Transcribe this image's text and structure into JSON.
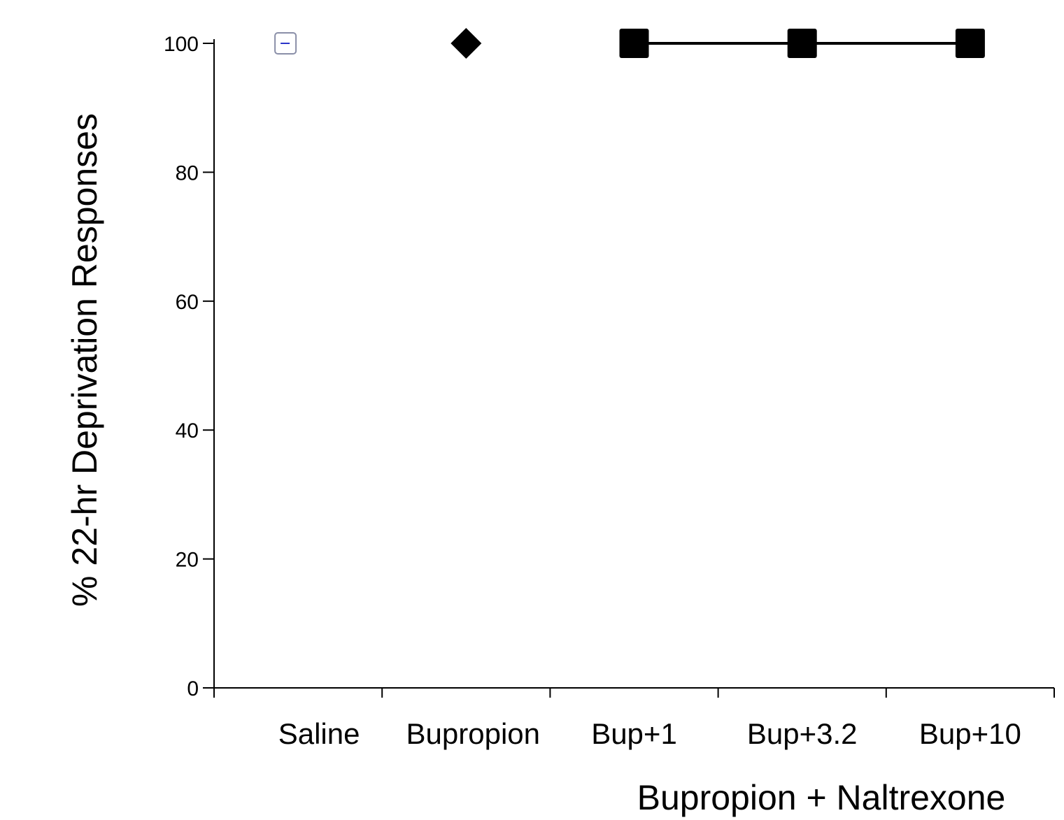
{
  "chart_data": {
    "type": "scatter",
    "ylabel": "% 22-hr Deprivation Responses",
    "xlabel": "Bupropion + Naltrexone",
    "categories": [
      "Saline",
      "Bupropion",
      "Bup+1",
      "Bup+3.2",
      "Bup+10"
    ],
    "yticks": [
      "0",
      "20",
      "40",
      "60",
      "80",
      "100"
    ],
    "ylim": [
      0,
      100
    ],
    "grid": false,
    "series": [
      {
        "marker": "open-square",
        "points": [
          {
            "category": "Saline",
            "y": 100
          }
        ]
      },
      {
        "marker": "filled-diamond",
        "points": [
          {
            "category": "Bupropion",
            "y": 100
          }
        ]
      },
      {
        "marker": "filled-square",
        "connected": true,
        "points": [
          {
            "category": "Bup+1",
            "y": 100
          },
          {
            "category": "Bup+3.2",
            "y": 100
          },
          {
            "category": "Bup+10",
            "y": 100
          }
        ]
      }
    ]
  }
}
